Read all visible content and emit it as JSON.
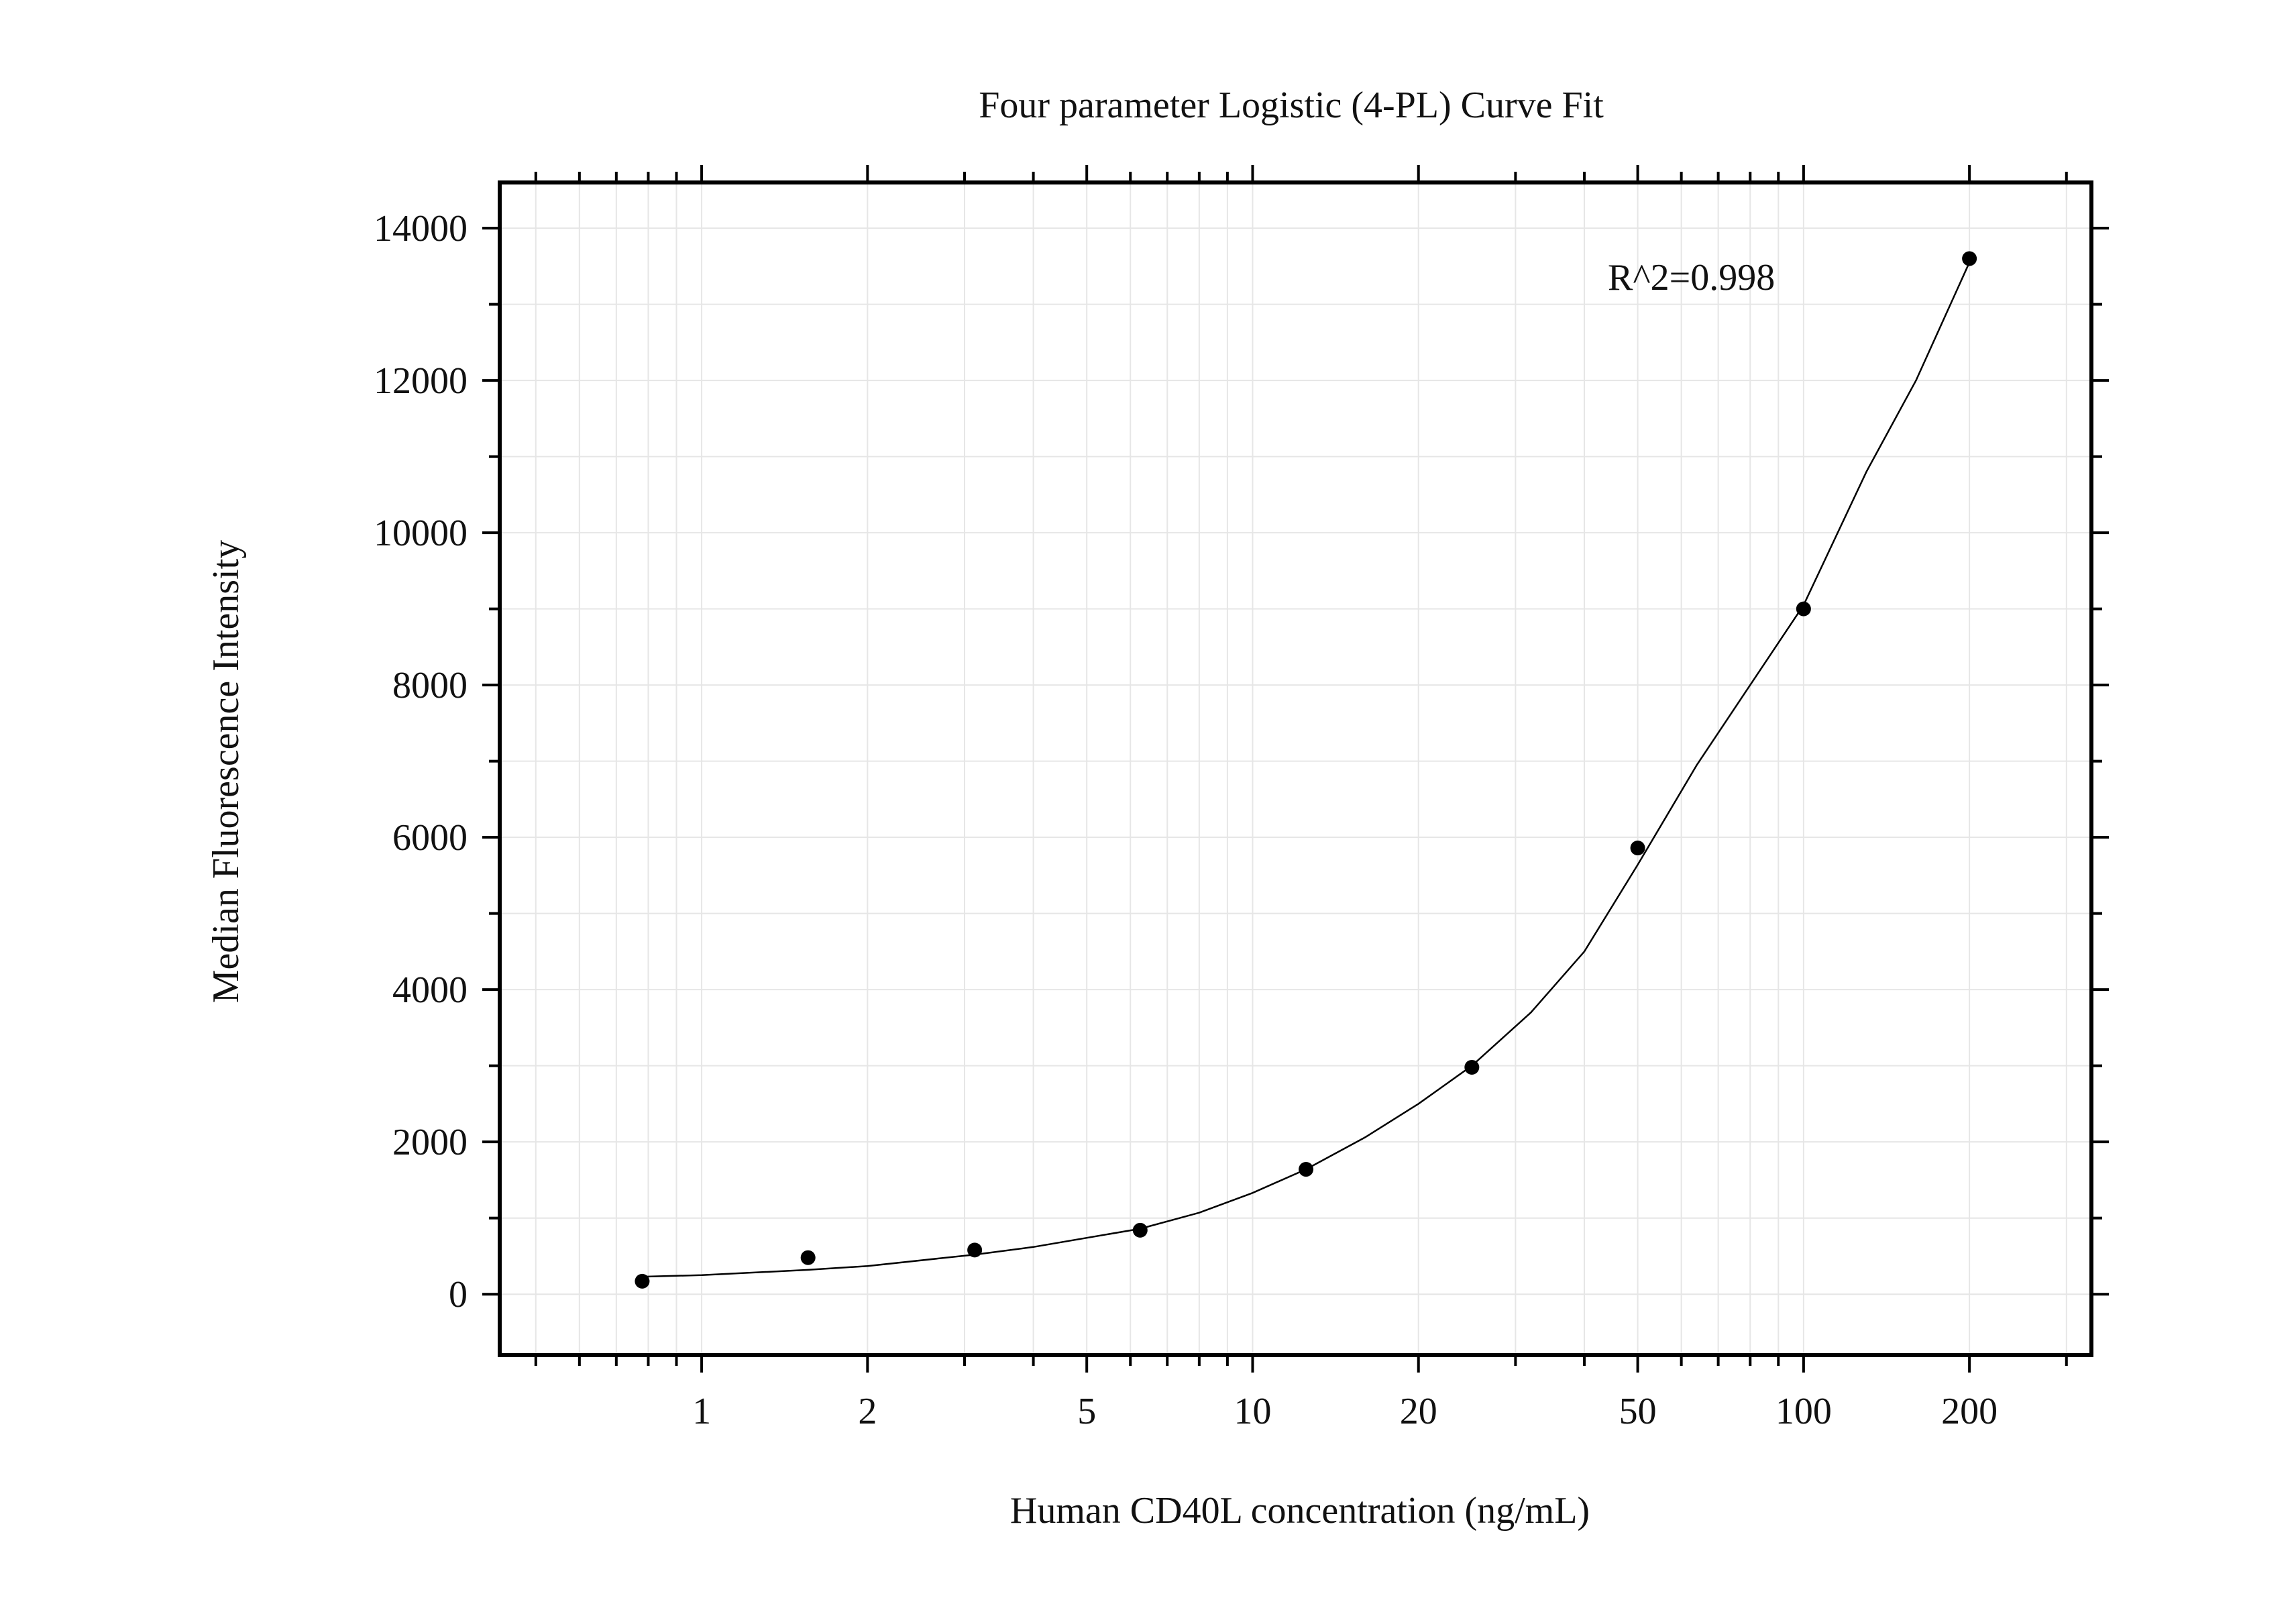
{
  "chart_data": {
    "type": "scatter",
    "title": "Four parameter Logistic (4-PL) Curve Fit",
    "xlabel": "Human CD40L concentration (ng/mL)",
    "ylabel": "Median Fluorescence Intensity",
    "x_scale": "log",
    "xlim": [
      0.43,
      333
    ],
    "ylim": [
      -800,
      14600
    ],
    "grid": true,
    "annotation": "R^2=0.998",
    "x_ticks": [
      {
        "value": 1,
        "label": "1"
      },
      {
        "value": 2,
        "label": "2"
      },
      {
        "value": 5,
        "label": "5"
      },
      {
        "value": 10,
        "label": "10"
      },
      {
        "value": 20,
        "label": "20"
      },
      {
        "value": 50,
        "label": "50"
      },
      {
        "value": 100,
        "label": "100"
      },
      {
        "value": 200,
        "label": "200"
      }
    ],
    "y_ticks": [
      {
        "value": 0,
        "label": "0"
      },
      {
        "value": 2000,
        "label": "2000"
      },
      {
        "value": 4000,
        "label": "4000"
      },
      {
        "value": 6000,
        "label": "6000"
      },
      {
        "value": 8000,
        "label": "8000"
      },
      {
        "value": 10000,
        "label": "10000"
      },
      {
        "value": 12000,
        "label": "12000"
      },
      {
        "value": 14000,
        "label": "14000"
      }
    ],
    "points": [
      {
        "x": 0.78,
        "y": 170
      },
      {
        "x": 1.56,
        "y": 480
      },
      {
        "x": 3.13,
        "y": 580
      },
      {
        "x": 6.25,
        "y": 840
      },
      {
        "x": 12.5,
        "y": 1640
      },
      {
        "x": 25,
        "y": 2980
      },
      {
        "x": 50,
        "y": 5860
      },
      {
        "x": 100,
        "y": 9000
      },
      {
        "x": 200,
        "y": 13600
      }
    ],
    "fit_curve": [
      {
        "x": 0.78,
        "y": 230
      },
      {
        "x": 1,
        "y": 250
      },
      {
        "x": 1.56,
        "y": 320
      },
      {
        "x": 2,
        "y": 370
      },
      {
        "x": 3.13,
        "y": 520
      },
      {
        "x": 4,
        "y": 620
      },
      {
        "x": 6.25,
        "y": 860
      },
      {
        "x": 8,
        "y": 1070
      },
      {
        "x": 10,
        "y": 1330
      },
      {
        "x": 12.5,
        "y": 1640
      },
      {
        "x": 16,
        "y": 2060
      },
      {
        "x": 20,
        "y": 2500
      },
      {
        "x": 25,
        "y": 3000
      },
      {
        "x": 32,
        "y": 3700
      },
      {
        "x": 40,
        "y": 4500
      },
      {
        "x": 50,
        "y": 5640
      },
      {
        "x": 64,
        "y": 6950
      },
      {
        "x": 80,
        "y": 8000
      },
      {
        "x": 100,
        "y": 9050
      },
      {
        "x": 130,
        "y": 10800
      },
      {
        "x": 160,
        "y": 12000
      },
      {
        "x": 200,
        "y": 13550
      }
    ],
    "colors": {
      "points": "#000000",
      "curve": "#000000",
      "axis": "#000000",
      "grid": "#e6e6e6"
    }
  }
}
